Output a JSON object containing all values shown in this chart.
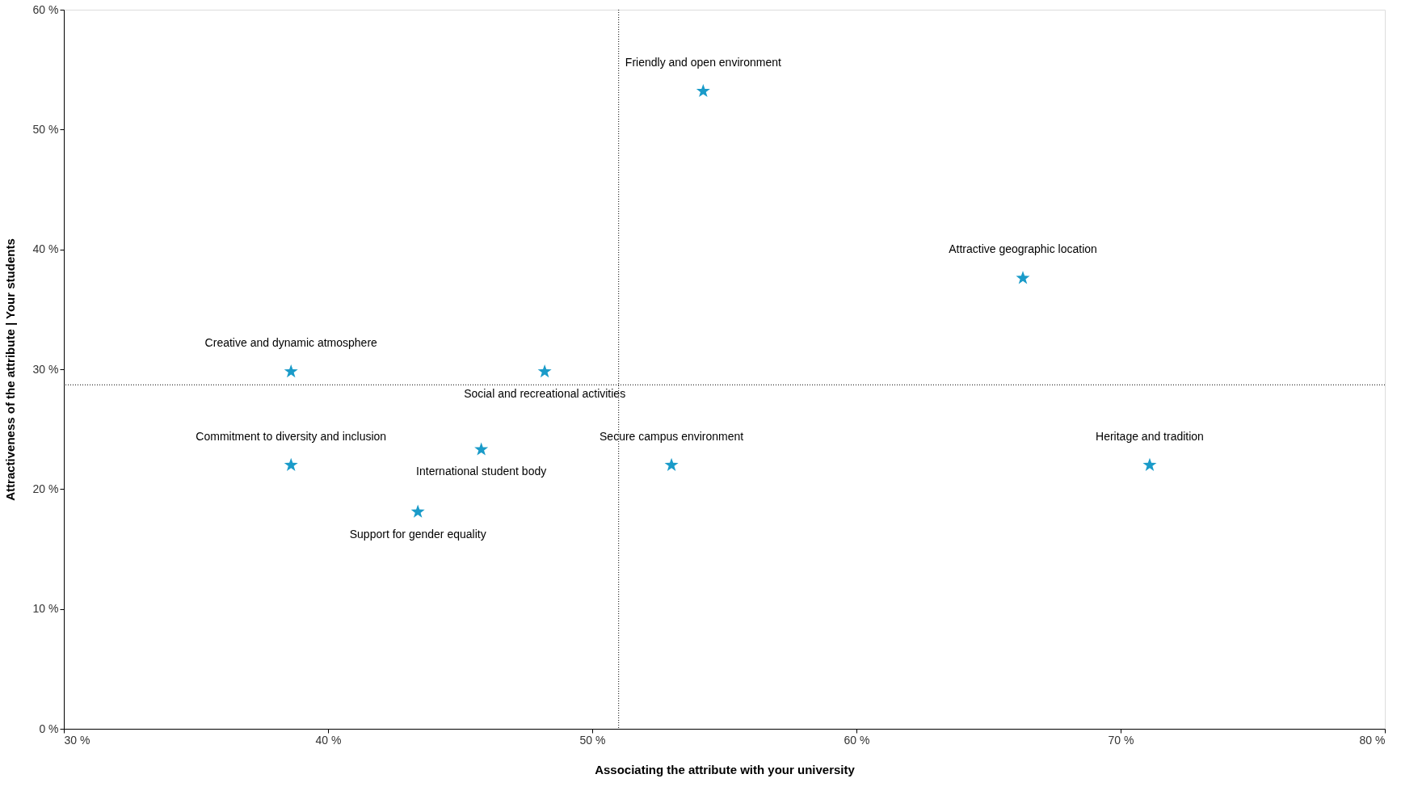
{
  "chart_data": {
    "type": "scatter",
    "xlabel": "Associating the attribute with your university",
    "ylabel": "Attractiveness of the attribute | Your students",
    "x": [
      54.2,
      66.3,
      38.6,
      48.2,
      38.6,
      45.8,
      43.4,
      53.0,
      71.1
    ],
    "series": [
      {
        "color": "#1a9bc9",
        "values": [
          53.2,
          37.6,
          29.8,
          29.8,
          22.0,
          23.3,
          18.1,
          22.0,
          22.0
        ]
      }
    ],
    "marker": "star",
    "annotations": [
      {
        "text": "Friendly and open environment",
        "x": 54.2,
        "y": 53.2
      },
      {
        "text": "Attractive geographic location",
        "x": 66.3,
        "y": 37.6
      },
      {
        "text": "Creative and dynamic atmosphere",
        "x": 38.6,
        "y": 29.8
      },
      {
        "text": "Social and recreational activities",
        "x": 48.2,
        "y": 29.8
      },
      {
        "text": "Commitment to diversity and inclusion",
        "x": 38.6,
        "y": 22.0
      },
      {
        "text": "International student body",
        "x": 45.8,
        "y": 23.3
      },
      {
        "text": "Support for gender equality",
        "x": 43.4,
        "y": 18.1
      },
      {
        "text": "Secure campus environment",
        "x": 53.0,
        "y": 22.0
      },
      {
        "text": "Heritage and tradition",
        "x": 71.1,
        "y": 22.0
      }
    ],
    "ref_lines": [
      {
        "axis": "x",
        "value": 51.0,
        "line_style": "dotted",
        "color": "#000000"
      },
      {
        "axis": "y",
        "value": 28.7,
        "line_style": "dotted",
        "color": "#000000"
      }
    ],
    "xlim": [
      30,
      80
    ],
    "xticks": [
      {
        "value": 30,
        "label": "30 %"
      },
      {
        "value": 40,
        "label": "40 %"
      },
      {
        "value": 50,
        "label": "50 %"
      },
      {
        "value": 60,
        "label": "60 %"
      },
      {
        "value": 70,
        "label": "70 %"
      },
      {
        "value": 80,
        "label": "80 %"
      }
    ],
    "ylim": [
      0,
      60
    ],
    "yticks": [
      {
        "value": 0,
        "label": "0 %"
      },
      {
        "value": 10,
        "label": "10 %"
      },
      {
        "value": 20,
        "label": "20 %"
      },
      {
        "value": 30,
        "label": "30 %"
      },
      {
        "value": 40,
        "label": "40 %"
      },
      {
        "value": 50,
        "label": "50 %"
      },
      {
        "value": 60,
        "label": "60 %"
      }
    ],
    "grid": false
  }
}
